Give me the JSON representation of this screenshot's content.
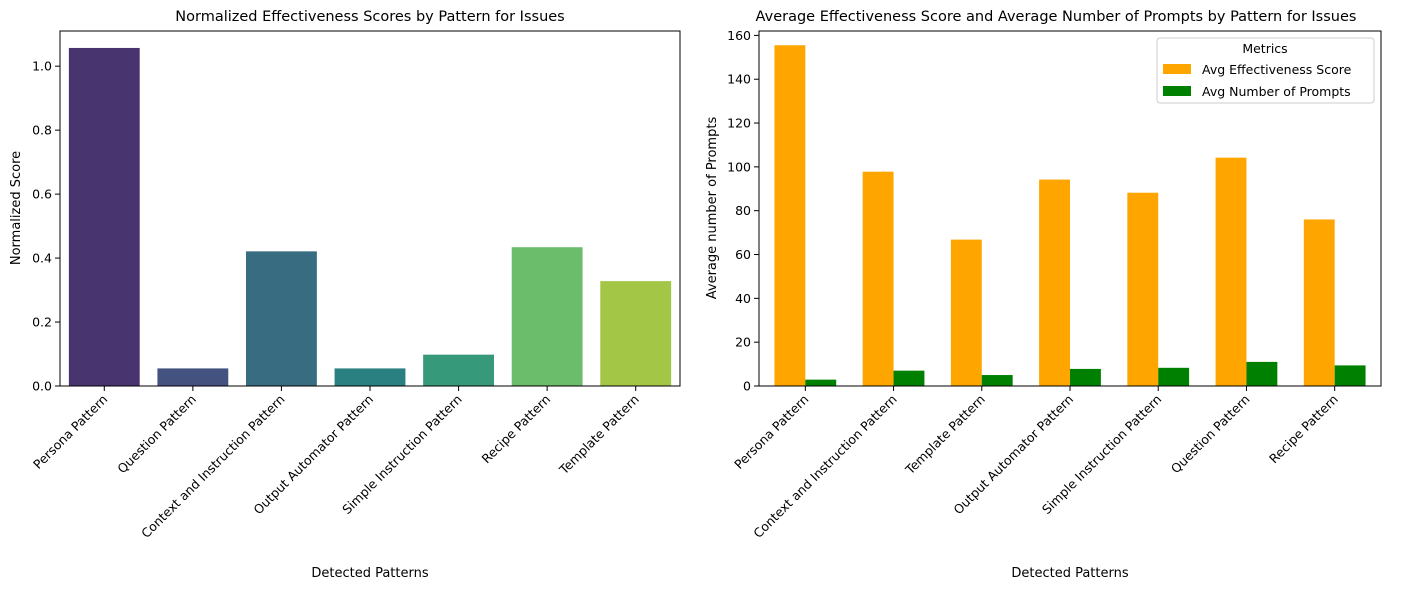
{
  "chart_data": [
    {
      "type": "bar",
      "title": "Normalized Effectiveness Scores by Pattern for Issues",
      "xlabel": "Detected Patterns",
      "ylabel": "Normalized Score",
      "ylim": [
        0,
        1.11
      ],
      "yticks": [
        "0.0",
        "0.2",
        "0.4",
        "0.6",
        "0.8",
        "1.0"
      ],
      "ytick_values": [
        0,
        0.2,
        0.4,
        0.6,
        0.8,
        1.0
      ],
      "grid": false,
      "categories": [
        "Persona Pattern",
        "Question Pattern",
        "Context and Instruction Pattern",
        "Output Automator Pattern",
        "Simple Instruction Pattern",
        "Recipe Pattern",
        "Template Pattern"
      ],
      "values": [
        1.057,
        0.055,
        0.421,
        0.055,
        0.098,
        0.434,
        0.328
      ],
      "colors": [
        "#48346f",
        "#43527f",
        "#386c81",
        "#2a8080",
        "#369a7a",
        "#6bbd6c",
        "#a4c647"
      ]
    },
    {
      "type": "bar",
      "title": "Average Effectiveness Score and Average Number of Prompts by Pattern for Issues",
      "xlabel": "Detected Patterns",
      "ylabel": "Average number of Prompts",
      "ylim": [
        0,
        162
      ],
      "yticks": [
        "0",
        "20",
        "40",
        "60",
        "80",
        "100",
        "120",
        "140",
        "160"
      ],
      "ytick_values": [
        0,
        20,
        40,
        60,
        80,
        100,
        120,
        140,
        160
      ],
      "grid": false,
      "legend": {
        "title": "Metrics",
        "placement": "top-right"
      },
      "categories": [
        "Persona Pattern",
        "Context and Instruction Pattern",
        "Template Pattern",
        "Output Automator Pattern",
        "Simple Instruction Pattern",
        "Question Pattern",
        "Recipe Pattern"
      ],
      "series": [
        {
          "name": "Avg Effectiveness Score",
          "color": "#ffa500",
          "values": [
            155.5,
            97.8,
            66.8,
            94.2,
            88.2,
            104.2,
            76.0
          ]
        },
        {
          "name": "Avg Number of Prompts",
          "color": "#008000",
          "values": [
            2.9,
            7.0,
            5.0,
            7.8,
            8.3,
            11.0,
            9.4
          ]
        }
      ]
    }
  ]
}
